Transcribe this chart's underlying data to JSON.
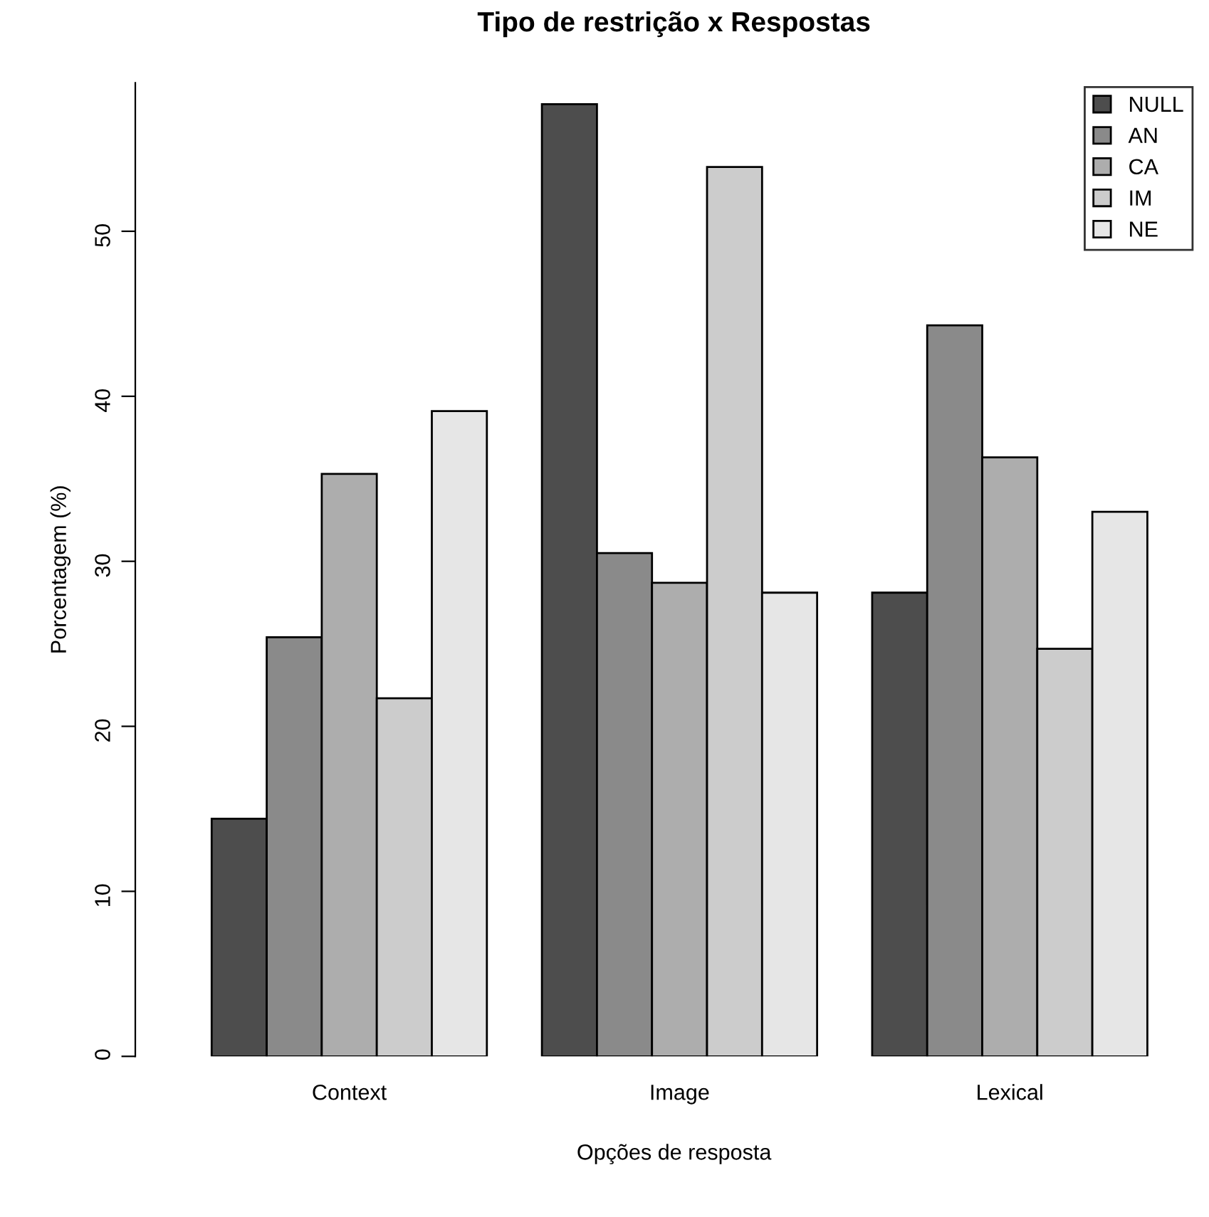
{
  "chart_data": {
    "type": "bar",
    "title": "Tipo de restrição x Respostas",
    "xlabel": "Opções de resposta",
    "ylabel": "Porcentagem (%)",
    "categories": [
      "Context",
      "Image",
      "Lexical"
    ],
    "series": [
      {
        "name": "NULL",
        "color": "#4d4d4d",
        "values": [
          14.4,
          57.7,
          28.1
        ]
      },
      {
        "name": "AN",
        "color": "#8a8a8a",
        "values": [
          25.4,
          30.5,
          44.3
        ]
      },
      {
        "name": "CA",
        "color": "#adadad",
        "values": [
          35.3,
          28.7,
          36.3
        ]
      },
      {
        "name": "IM",
        "color": "#cccccc",
        "values": [
          21.7,
          53.9,
          24.7
        ]
      },
      {
        "name": "NE",
        "color": "#e6e6e6",
        "values": [
          39.1,
          28.1,
          33.0
        ]
      }
    ],
    "ylim": [
      0,
      59
    ],
    "yticks": [
      0,
      10,
      20,
      30,
      40,
      50
    ],
    "grid": false,
    "legend": "top right"
  }
}
